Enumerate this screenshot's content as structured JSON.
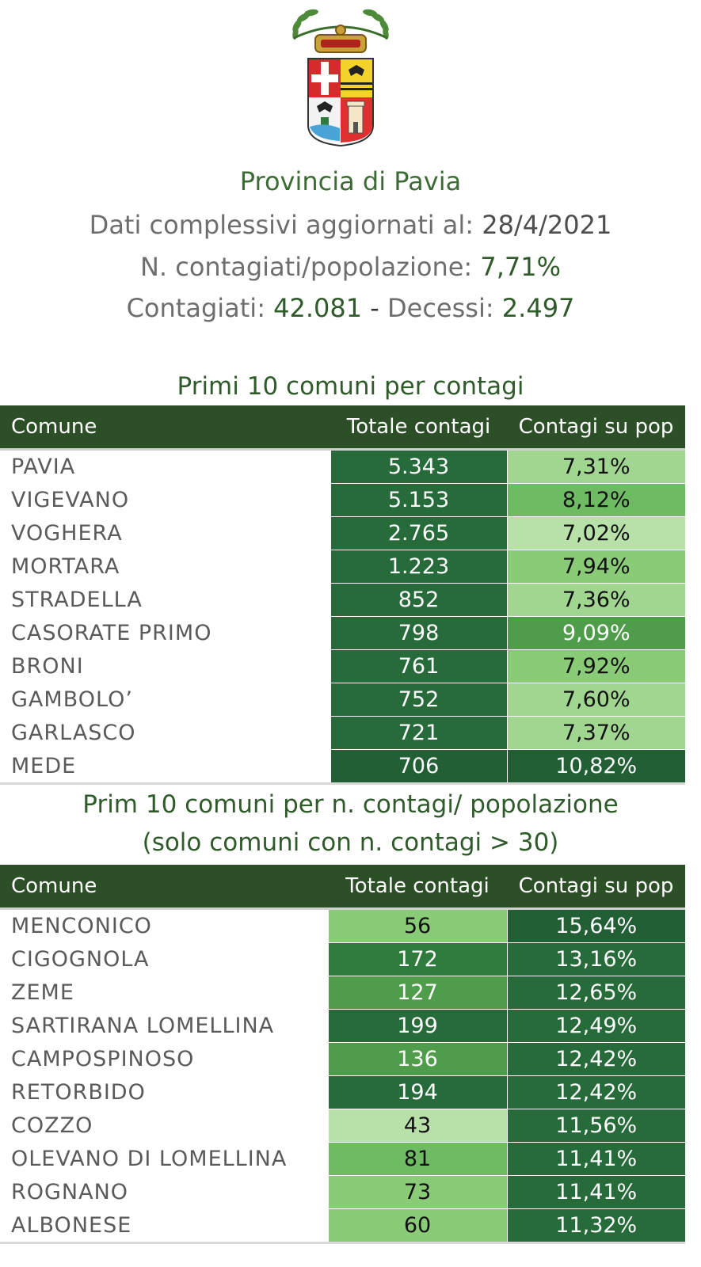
{
  "header": {
    "province": "Provincia di Pavia",
    "updated_label": "Dati complessivi aggiornati al:",
    "updated_date": "28/4/2021",
    "ratio_label": "N. contagiati/popolazione:",
    "ratio_value": "7,71%",
    "cases_label": "Contagiati:",
    "cases_value": "42.081",
    "separator": "-",
    "deaths_label": "Decessi:",
    "deaths_value": "2.497"
  },
  "colors": {
    "header_bg": "#2c4f27",
    "title_green": "#3d6b35",
    "scale": [
      "#b7e1a8",
      "#a1d690",
      "#8acb78",
      "#6fbb64",
      "#4f9d4a",
      "#3a8a40",
      "#2f7a3d",
      "#266b39",
      "#225f35"
    ]
  },
  "table1": {
    "title": "Primi 10 comuni per contagi",
    "columns": [
      "Comune",
      "Totale contagi",
      "Contagi su pop"
    ],
    "rows": [
      {
        "name": "PAVIA",
        "total": "5.343",
        "pct": "7,31%"
      },
      {
        "name": "VIGEVANO",
        "total": "5.153",
        "pct": "8,12%"
      },
      {
        "name": "VOGHERA",
        "total": "2.765",
        "pct": "7,02%"
      },
      {
        "name": "MORTARA",
        "total": "1.223",
        "pct": "7,94%"
      },
      {
        "name": "STRADELLA",
        "total": "852",
        "pct": "7,36%"
      },
      {
        "name": "CASORATE PRIMO",
        "total": "798",
        "pct": "9,09%"
      },
      {
        "name": "BRONI",
        "total": "761",
        "pct": "7,92%"
      },
      {
        "name": "GAMBOLO’",
        "total": "752",
        "pct": "7,60%"
      },
      {
        "name": "GARLASCO",
        "total": "721",
        "pct": "7,37%"
      },
      {
        "name": "MEDE",
        "total": "706",
        "pct": "10,82%"
      }
    ]
  },
  "table2": {
    "title_line1": "Prim 10 comuni per n. contagi/ popolazione",
    "title_line2": "(solo comuni con n. contagi > 30)",
    "columns": [
      "Comune",
      "Totale contagi",
      "Contagi su pop"
    ],
    "rows": [
      {
        "name": "MENCONICO",
        "total": "56",
        "pct": "15,64%"
      },
      {
        "name": "CIGOGNOLA",
        "total": "172",
        "pct": "13,16%"
      },
      {
        "name": "ZEME",
        "total": "127",
        "pct": "12,65%"
      },
      {
        "name": "SARTIRANA LOMELLINA",
        "total": "199",
        "pct": "12,49%"
      },
      {
        "name": "CAMPOSPINOSO",
        "total": "136",
        "pct": "12,42%"
      },
      {
        "name": "RETORBIDO",
        "total": "194",
        "pct": "12,42%"
      },
      {
        "name": "COZZO",
        "total": "43",
        "pct": "11,56%"
      },
      {
        "name": "OLEVANO DI LOMELLINA",
        "total": "81",
        "pct": "11,41%"
      },
      {
        "name": "ROGNANO",
        "total": "73",
        "pct": "11,41%"
      },
      {
        "name": "ALBONESE",
        "total": "60",
        "pct": "11,32%"
      }
    ]
  }
}
